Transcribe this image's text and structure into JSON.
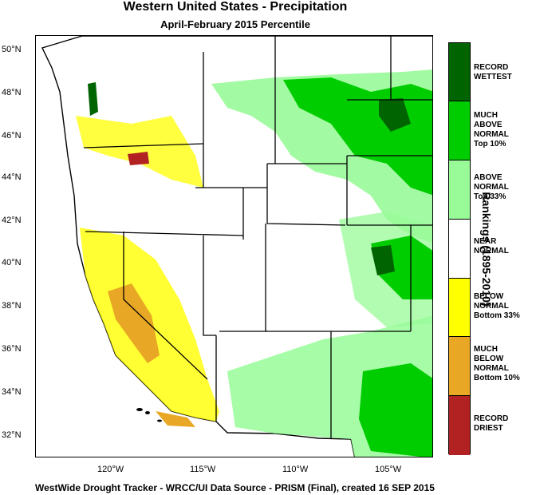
{
  "header": {
    "title": "Western United States - Precipitation",
    "subtitle": "April-February 2015 Percentile"
  },
  "footer": {
    "credit": "WestWide Drought Tracker - WRCC/UI  Data Source - PRISM (Final), created 16 SEP 2015"
  },
  "axes": {
    "lat_labels": [
      "50°N",
      "48°N",
      "46°N",
      "44°N",
      "42°N",
      "40°N",
      "38°N",
      "36°N",
      "34°N",
      "32°N"
    ],
    "lon_labels": [
      "120°W",
      "115°W",
      "110°W",
      "105°W"
    ]
  },
  "legend": {
    "title": "Rankings (1895-2010)",
    "categories": [
      {
        "label": "RECORD\nWETTEST",
        "color": "#006400"
      },
      {
        "label": "MUCH\nABOVE\nNORMAL\nTop 10%",
        "color": "#00cd00"
      },
      {
        "label": "ABOVE\nNORMAL\nTop 33%",
        "color": "#98fb98"
      },
      {
        "label": "NEAR\nNORMAL",
        "color": "#ffffff"
      },
      {
        "label": "BELOW\nNORMAL\nBottom 33%",
        "color": "#ffff00"
      },
      {
        "label": "MUCH\nBELOW\nNORMAL\nBottom 10%",
        "color": "#e8a825"
      },
      {
        "label": "RECORD\nDRIEST",
        "color": "#b22222"
      }
    ]
  },
  "colors": {
    "ocean": "#ffffff",
    "border": "#000000"
  }
}
